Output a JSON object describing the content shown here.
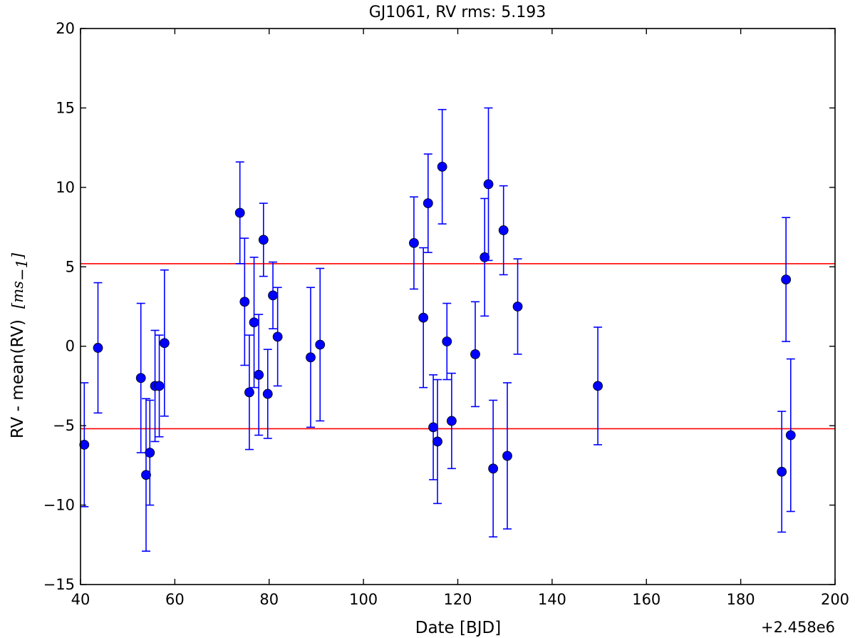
{
  "chart_data": {
    "type": "scatter",
    "title": "GJ1061, RV rms: 5.193",
    "xlabel": "Date [BJD]",
    "ylabel": "RV - mean(RV)",
    "ylabel_unit": "[ms_1]",
    "ylabel_unit_base": "ms",
    "ylabel_unit_sub": "−1",
    "x_offset_label": "+2.458e6",
    "xlim": [
      40,
      200
    ],
    "ylim": [
      -15,
      20
    ],
    "x_ticks": [
      40,
      60,
      80,
      100,
      120,
      140,
      160,
      180,
      200
    ],
    "y_ticks": [
      -15,
      -10,
      -5,
      0,
      5,
      10,
      15,
      20
    ],
    "x_tick_labels": [
      "40",
      "60",
      "80",
      "100",
      "120",
      "140",
      "160",
      "180",
      "200"
    ],
    "y_tick_labels": [
      "−15",
      "−10",
      "−5",
      "0",
      "5",
      "10",
      "15",
      "20"
    ],
    "grid": false,
    "rms": 5.193,
    "reference_lines": [
      {
        "y": 5.193,
        "color": "#ff0000"
      },
      {
        "y": -5.193,
        "color": "#ff0000"
      }
    ],
    "marker_color": "#0000ff",
    "series": [
      {
        "points": [
          {
            "x": 40.8,
            "y": -6.2,
            "err": 3.9
          },
          {
            "x": 43.7,
            "y": -0.1,
            "err": 4.1
          },
          {
            "x": 52.8,
            "y": -2.0,
            "err": 4.7
          },
          {
            "x": 53.9,
            "y": -8.1,
            "err": 4.8
          },
          {
            "x": 54.7,
            "y": -6.7,
            "err": 3.3
          },
          {
            "x": 55.8,
            "y": -2.5,
            "err": 3.5
          },
          {
            "x": 56.7,
            "y": -2.5,
            "err": 3.2
          },
          {
            "x": 57.8,
            "y": 0.2,
            "err": 4.6
          },
          {
            "x": 73.8,
            "y": 8.4,
            "err": 3.2
          },
          {
            "x": 74.8,
            "y": 2.8,
            "err": 4.0
          },
          {
            "x": 75.8,
            "y": -2.9,
            "err": 3.6
          },
          {
            "x": 76.8,
            "y": 1.5,
            "err": 4.1
          },
          {
            "x": 77.8,
            "y": -1.8,
            "err": 3.8
          },
          {
            "x": 78.8,
            "y": 6.7,
            "err": 2.3
          },
          {
            "x": 79.7,
            "y": -3.0,
            "err": 2.8
          },
          {
            "x": 80.8,
            "y": 3.2,
            "err": 2.1
          },
          {
            "x": 81.8,
            "y": 0.6,
            "err": 3.1
          },
          {
            "x": 88.8,
            "y": -0.7,
            "err": 4.4
          },
          {
            "x": 90.8,
            "y": 0.1,
            "err": 4.8
          },
          {
            "x": 110.7,
            "y": 6.5,
            "err": 2.9
          },
          {
            "x": 112.7,
            "y": 1.8,
            "err": 4.4
          },
          {
            "x": 113.7,
            "y": 9.0,
            "err": 3.1
          },
          {
            "x": 114.8,
            "y": -5.1,
            "err": 3.3
          },
          {
            "x": 115.7,
            "y": -6.0,
            "err": 3.9
          },
          {
            "x": 116.7,
            "y": 11.3,
            "err": 3.6
          },
          {
            "x": 117.7,
            "y": 0.3,
            "err": 2.4
          },
          {
            "x": 118.7,
            "y": -4.7,
            "err": 3.0
          },
          {
            "x": 123.7,
            "y": -0.5,
            "err": 3.3
          },
          {
            "x": 125.7,
            "y": 5.6,
            "err": 3.7
          },
          {
            "x": 126.5,
            "y": 10.2,
            "err": 4.8
          },
          {
            "x": 127.5,
            "y": -7.7,
            "err": 4.3
          },
          {
            "x": 129.7,
            "y": 7.3,
            "err": 2.8
          },
          {
            "x": 130.5,
            "y": -6.9,
            "err": 4.6
          },
          {
            "x": 132.7,
            "y": 2.5,
            "err": 3.0
          },
          {
            "x": 149.7,
            "y": -2.5,
            "err": 3.7
          },
          {
            "x": 188.7,
            "y": -7.9,
            "err": 3.8
          },
          {
            "x": 189.6,
            "y": 4.2,
            "err": 3.9
          },
          {
            "x": 190.6,
            "y": -5.6,
            "err": 4.8
          }
        ]
      }
    ]
  }
}
